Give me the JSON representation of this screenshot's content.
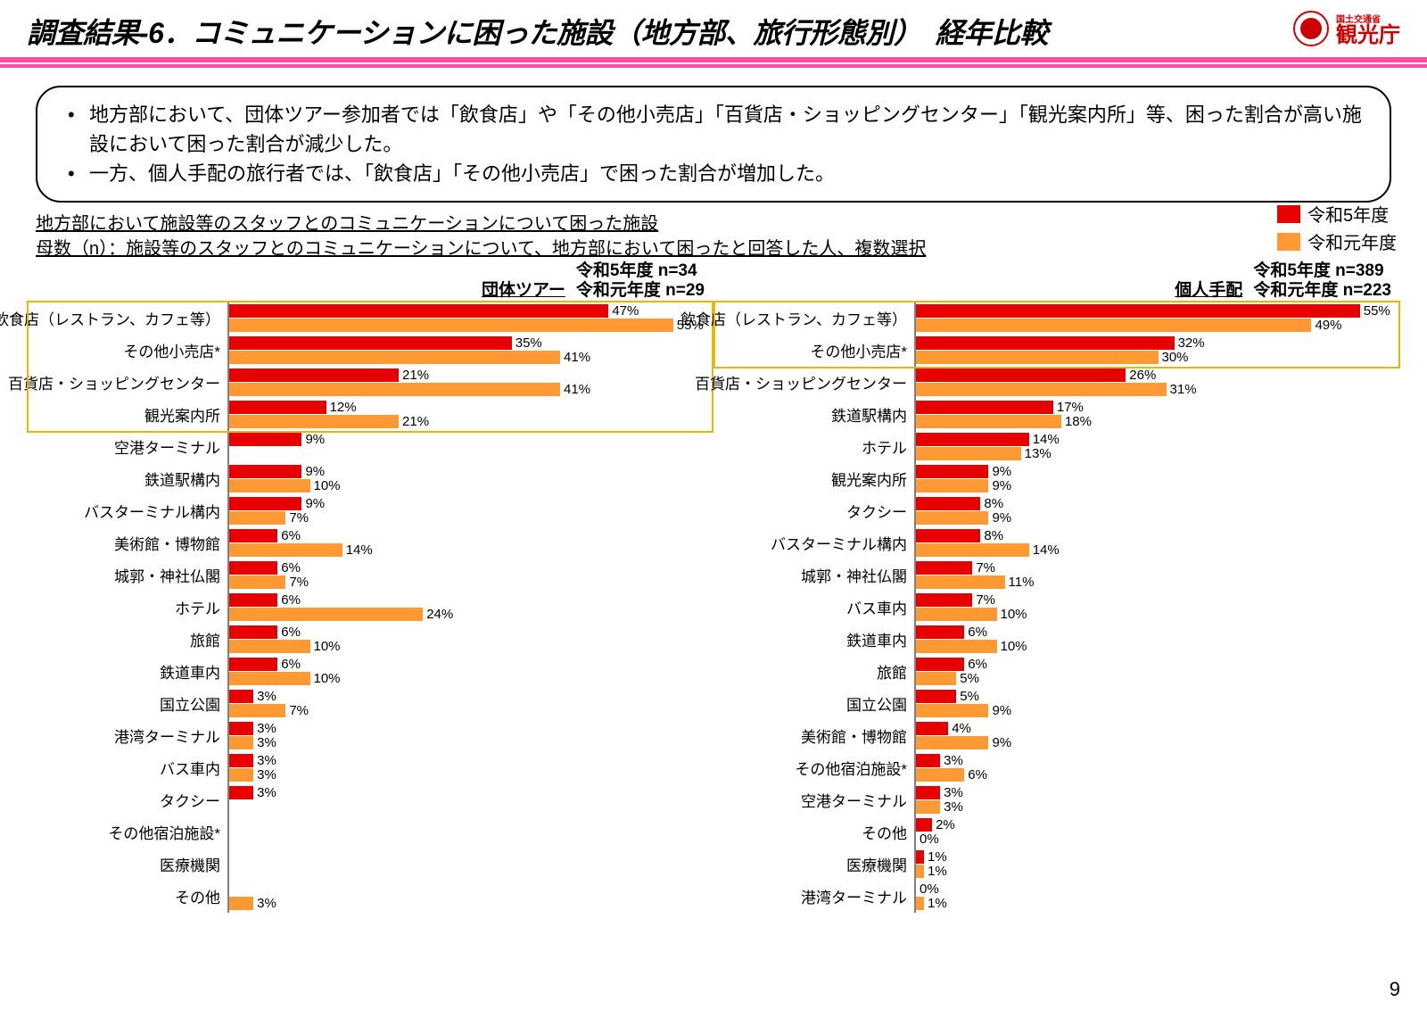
{
  "page_number": "9",
  "title": "調査結果-6．コミュニケーションに困った施設（地方部、旅行形態別）　経年比較",
  "agency_small": "国土交通省",
  "agency_big": "観光庁",
  "band_color": "#ff4da6",
  "summary": [
    "地方部において、団体ツアー参加者では「飲食店」や「その他小売店」「百貨店・ショッピングセンター」「観光案内所」等、困った割合が高い施設において困った割合が減少した。",
    "一方、個人手配の旅行者では、「飲食店」「その他小売店」で困った割合が増加した。"
  ],
  "meta_line1": "地方部において施設等のスタッフとのコミュニケーションについて困った施設",
  "meta_line2": "母数（n）：施設等のスタッフとのコミュニケーションについて、地方部において困ったと回答した人、複数選択",
  "colors": {
    "r5": "#e60000",
    "r1": "#ff9933",
    "axis": "#808080",
    "highlight": "#e6b800"
  },
  "legend": {
    "r5": "令和5年度",
    "r1": "令和元年度"
  },
  "x_max": 60,
  "chart_left": {
    "title": "団体ツアー",
    "n_r5": "令和5年度 n=34",
    "n_r1": "令和元年度 n=29",
    "highlight_rows": 4,
    "rows": [
      {
        "label": "飲食店（レストラン、カフェ等）",
        "r5": 47,
        "r1": 55
      },
      {
        "label": "その他小売店*",
        "r5": 35,
        "r1": 41
      },
      {
        "label": "百貨店・ショッピングセンター",
        "r5": 21,
        "r1": 41
      },
      {
        "label": "観光案内所",
        "r5": 12,
        "r1": 21
      },
      {
        "label": "空港ターミナル",
        "r5": 9,
        "r1": null
      },
      {
        "label": "鉄道駅構内",
        "r5": 9,
        "r1": 10
      },
      {
        "label": "バスターミナル構内",
        "r5": 9,
        "r1": 7
      },
      {
        "label": "美術館・博物館",
        "r5": 6,
        "r1": 14
      },
      {
        "label": "城郭・神社仏閣",
        "r5": 6,
        "r1": 7
      },
      {
        "label": "ホテル",
        "r5": 6,
        "r1": 24
      },
      {
        "label": "旅館",
        "r5": 6,
        "r1": 10
      },
      {
        "label": "鉄道車内",
        "r5": 6,
        "r1": 10
      },
      {
        "label": "国立公園",
        "r5": 3,
        "r1": 7
      },
      {
        "label": "港湾ターミナル",
        "r5": 3,
        "r1": 3
      },
      {
        "label": "バス車内",
        "r5": 3,
        "r1": 3
      },
      {
        "label": "タクシー",
        "r5": 3,
        "r1": null
      },
      {
        "label": "その他宿泊施設*",
        "r5": null,
        "r1": null
      },
      {
        "label": "医療機関",
        "r5": null,
        "r1": null
      },
      {
        "label": "その他",
        "r5": null,
        "r1": 3
      }
    ]
  },
  "chart_right": {
    "title": "個人手配",
    "n_r5": "令和5年度 n=389",
    "n_r1": "令和元年度 n=223",
    "highlight_rows": 2,
    "rows": [
      {
        "label": "飲食店（レストラン、カフェ等）",
        "r5": 55,
        "r1": 49
      },
      {
        "label": "その他小売店*",
        "r5": 32,
        "r1": 30
      },
      {
        "label": "百貨店・ショッピングセンター",
        "r5": 26,
        "r1": 31
      },
      {
        "label": "鉄道駅構内",
        "r5": 17,
        "r1": 18
      },
      {
        "label": "ホテル",
        "r5": 14,
        "r1": 13
      },
      {
        "label": "観光案内所",
        "r5": 9,
        "r1": 9
      },
      {
        "label": "タクシー",
        "r5": 8,
        "r1": 9
      },
      {
        "label": "バスターミナル構内",
        "r5": 8,
        "r1": 14
      },
      {
        "label": "城郭・神社仏閣",
        "r5": 7,
        "r1": 11
      },
      {
        "label": "バス車内",
        "r5": 7,
        "r1": 10
      },
      {
        "label": "鉄道車内",
        "r5": 6,
        "r1": 10
      },
      {
        "label": "旅館",
        "r5": 6,
        "r1": 5
      },
      {
        "label": "国立公園",
        "r5": 5,
        "r1": 9
      },
      {
        "label": "美術館・博物館",
        "r5": 4,
        "r1": 9
      },
      {
        "label": "その他宿泊施設*",
        "r5": 3,
        "r1": 6
      },
      {
        "label": "空港ターミナル",
        "r5": 3,
        "r1": 3
      },
      {
        "label": "その他",
        "r5": 2,
        "r1": 0
      },
      {
        "label": "医療機関",
        "r5": 1,
        "r1": 1
      },
      {
        "label": "港湾ターミナル",
        "r5": 0,
        "r1": 1
      }
    ]
  }
}
